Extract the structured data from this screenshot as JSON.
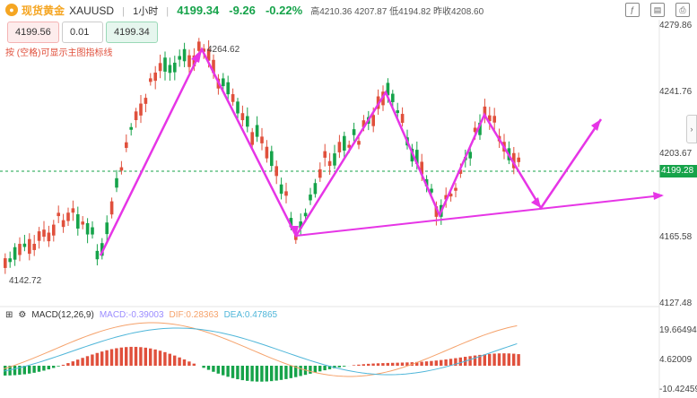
{
  "header": {
    "name": "现货黄金",
    "symbol": "XAUUSD",
    "interval": "1小时",
    "last_price": "4199.34",
    "change": "-9.26",
    "change_pct": "-0.22%",
    "high_label": "高",
    "high": "4210.36",
    "open": "4207.87",
    "low_label": "低",
    "low": "4194.82",
    "prev_label": "昨收",
    "prev_close": "4208.60"
  },
  "order": {
    "sell_price": "4199.56",
    "quantity": "0.01",
    "buy_price": "4199.34"
  },
  "hint": "按 (空格)可显示主图指标线",
  "price_axis": [
    "4279.86",
    "4241.76",
    "4203.67",
    "4165.58",
    "4127.48"
  ],
  "current_price_tag": "4199.28",
  "annotations": {
    "peak": "4264.62",
    "low": "4142.72"
  },
  "macd": {
    "label": "MACD(12,26,9)",
    "macd_val": "MACD:-0.39003",
    "dif_val": "DIF:0.28363",
    "dea_val": "DEA:0.47865",
    "axis": [
      "19.66494",
      "4.62009",
      "-10.42459"
    ]
  },
  "colors": {
    "up": "#16a34a",
    "down": "#e0503c",
    "arrow": "#e635e6",
    "dif": "#f5a26b",
    "dea": "#4fb6d9"
  }
}
